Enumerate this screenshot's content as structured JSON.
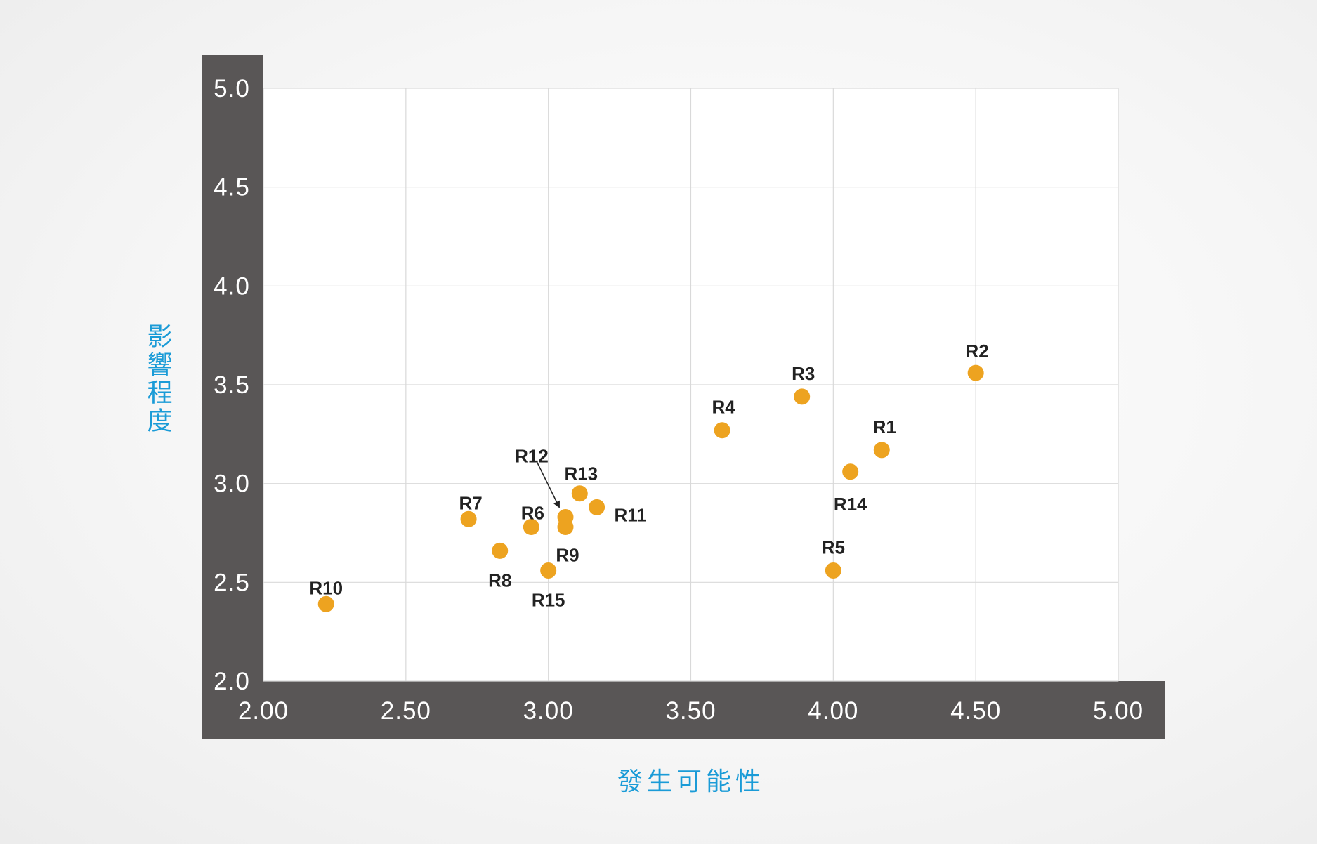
{
  "chart_data": {
    "type": "scatter",
    "title": "",
    "xlabel": "發生可能性",
    "ylabel": "影響程度",
    "xlim": [
      2.0,
      5.0
    ],
    "ylim": [
      2.0,
      5.0
    ],
    "x_ticks": [
      "2.00",
      "2.50",
      "3.00",
      "3.50",
      "4.00",
      "4.50",
      "5.00"
    ],
    "y_ticks": [
      "2.0",
      "2.5",
      "3.0",
      "3.5",
      "4.0",
      "4.5",
      "5.0"
    ],
    "grid": true,
    "colors": {
      "point": "#eda320",
      "axis_band": "#595656",
      "grid": "#d9d9d9",
      "axis_title": "#1a9bd7"
    },
    "series": [
      {
        "points": [
          {
            "label": "R1",
            "x": 4.17,
            "y": 3.17
          },
          {
            "label": "R2",
            "x": 4.5,
            "y": 3.56
          },
          {
            "label": "R3",
            "x": 3.89,
            "y": 3.44
          },
          {
            "label": "R4",
            "x": 3.61,
            "y": 3.27
          },
          {
            "label": "R5",
            "x": 4.0,
            "y": 2.56
          },
          {
            "label": "R6",
            "x": 2.94,
            "y": 2.78
          },
          {
            "label": "R7",
            "x": 2.72,
            "y": 2.82
          },
          {
            "label": "R8",
            "x": 2.83,
            "y": 2.66
          },
          {
            "label": "R9",
            "x": 3.06,
            "y": 2.78
          },
          {
            "label": "R10",
            "x": 2.22,
            "y": 2.39
          },
          {
            "label": "R11",
            "x": 3.17,
            "y": 2.88
          },
          {
            "label": "R12",
            "x": 3.06,
            "y": 2.83
          },
          {
            "label": "R13",
            "x": 3.11,
            "y": 2.95
          },
          {
            "label": "R14",
            "x": 4.06,
            "y": 3.06
          },
          {
            "label": "R15",
            "x": 3.0,
            "y": 2.56
          }
        ]
      }
    ]
  }
}
